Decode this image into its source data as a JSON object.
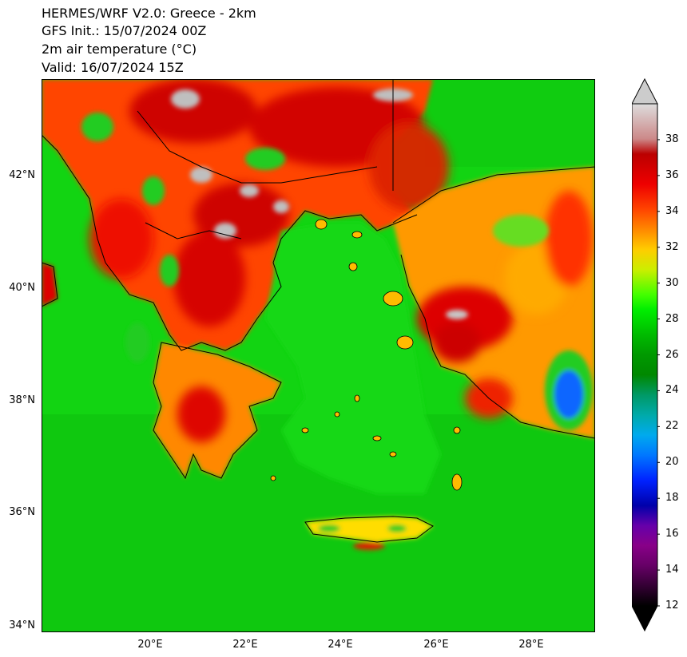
{
  "titles": [
    "HERMES/WRF V2.0: Greece - 2km",
    "GFS Init.: 15/07/2024 00Z",
    "2m air temperature (°C)",
    "Valid: 16/07/2024 15Z"
  ],
  "lat_labels": [
    "42°N",
    "40°N",
    "38°N",
    "36°N",
    "34°N"
  ],
  "lon_labels": [
    "20°E",
    "22°E",
    "24°E",
    "26°E",
    "28°E"
  ],
  "colorbar": {
    "ticks": [
      "12",
      "14",
      "16",
      "18",
      "20",
      "22",
      "24",
      "26",
      "28",
      "30",
      "32",
      "34",
      "36",
      "38"
    ],
    "min": 12,
    "max": 40,
    "extend": "both"
  },
  "colors": {
    "sea": "#11dd11",
    "land_warm": "#ff3300",
    "land_hot": "#cc0000",
    "coast": "#000000"
  }
}
